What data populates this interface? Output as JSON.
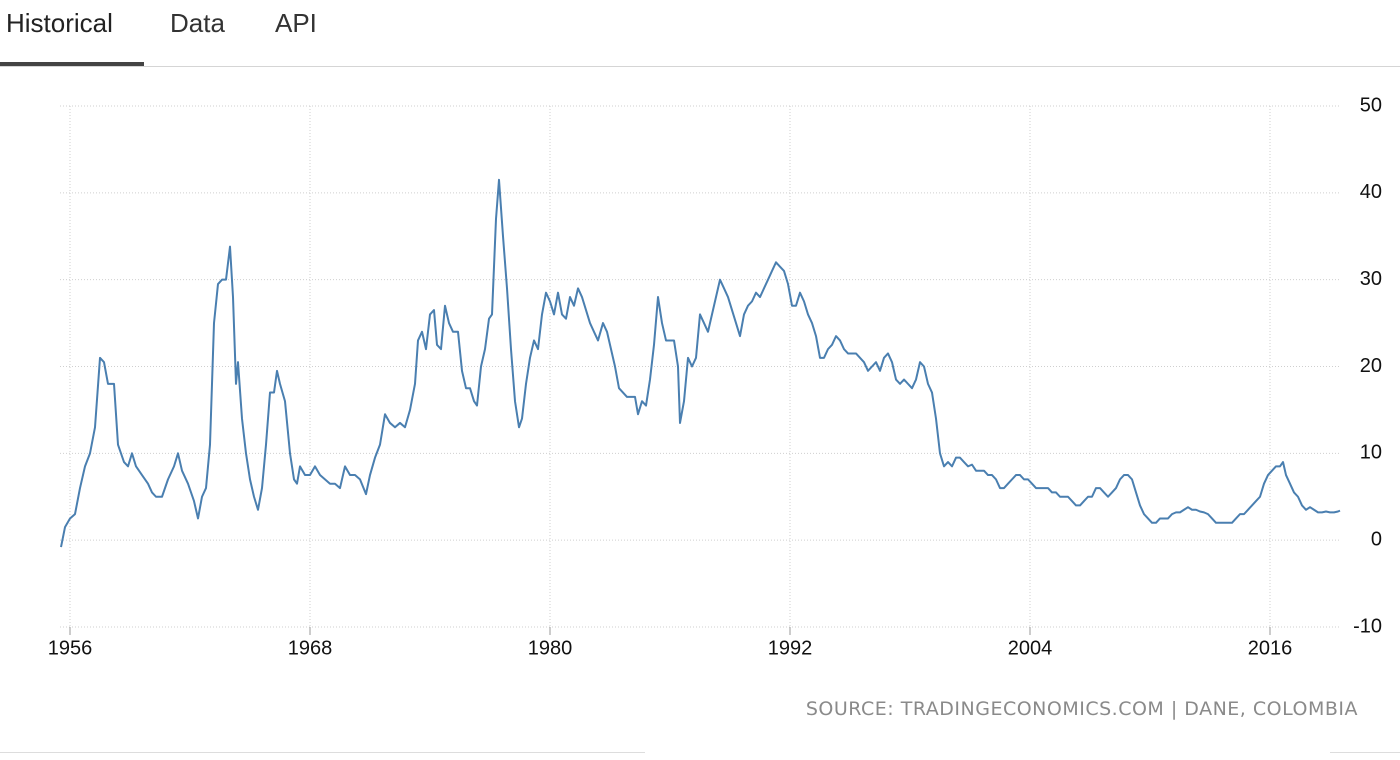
{
  "tabs": [
    "Historical",
    "Data",
    "API"
  ],
  "source": "SOURCE: TRADINGECONOMICS.COM | DANE, COLOMBIA",
  "chart_data": {
    "type": "line",
    "color": "#4a7fb0",
    "grid": true,
    "xlim": [
      1955.5,
      2019.5
    ],
    "xticks": [
      1956,
      1968,
      1980,
      1992,
      2004,
      2016
    ],
    "ylim": [
      -10,
      50
    ],
    "yticks": [
      -10,
      0,
      10,
      20,
      30,
      40,
      50
    ],
    "x": [
      1955.55,
      1955.75,
      1956,
      1956.25,
      1956.5,
      1956.75,
      1957,
      1957.25,
      1957.5,
      1957.7,
      1957.9,
      1958.2,
      1958.4,
      1958.7,
      1958.9,
      1959.1,
      1959.3,
      1959.6,
      1959.9,
      1960.1,
      1960.3,
      1960.6,
      1960.9,
      1961.2,
      1961.4,
      1961.6,
      1961.9,
      1962.2,
      1962.4,
      1962.6,
      1962.8,
      1963,
      1963.2,
      1963.4,
      1963.6,
      1963.8,
      1964,
      1964.15,
      1964.3,
      1964.4,
      1964.6,
      1964.8,
      1965,
      1965.2,
      1965.4,
      1965.6,
      1965.8,
      1966,
      1966.2,
      1966.35,
      1966.5,
      1966.75,
      1967,
      1967.2,
      1967.35,
      1967.5,
      1967.75,
      1968,
      1968.25,
      1968.5,
      1968.75,
      1969,
      1969.25,
      1969.5,
      1969.75,
      1970,
      1970.25,
      1970.5,
      1970.8,
      1971,
      1971.25,
      1971.5,
      1971.75,
      1972,
      1972.25,
      1972.5,
      1972.75,
      1973,
      1973.25,
      1973.4,
      1973.6,
      1973.8,
      1974,
      1974.2,
      1974.35,
      1974.55,
      1974.75,
      1974.95,
      1975.15,
      1975.4,
      1975.6,
      1975.8,
      1976,
      1976.2,
      1976.35,
      1976.55,
      1976.75,
      1976.95,
      1977.1,
      1977.3,
      1977.45,
      1977.65,
      1977.85,
      1978.05,
      1978.25,
      1978.45,
      1978.6,
      1978.8,
      1979,
      1979.2,
      1979.4,
      1979.6,
      1979.8,
      1980,
      1980.2,
      1980.4,
      1980.6,
      1980.8,
      1981,
      1981.2,
      1981.4,
      1981.6,
      1981.8,
      1982,
      1982.2,
      1982.4,
      1982.65,
      1982.85,
      1983.05,
      1983.25,
      1983.45,
      1983.65,
      1983.85,
      1984.05,
      1984.25,
      1984.4,
      1984.6,
      1984.8,
      1985,
      1985.2,
      1985.4,
      1985.6,
      1985.8,
      1986,
      1986.2,
      1986.4,
      1986.5,
      1986.7,
      1986.9,
      1987.1,
      1987.3,
      1987.5,
      1987.7,
      1987.9,
      1988.1,
      1988.3,
      1988.5,
      1988.7,
      1988.9,
      1989.1,
      1989.3,
      1989.5,
      1989.7,
      1989.9,
      1990.1,
      1990.3,
      1990.5,
      1990.7,
      1990.9,
      1991.1,
      1991.3,
      1991.5,
      1991.7,
      1991.9,
      1992.1,
      1992.3,
      1992.5,
      1992.7,
      1992.9,
      1993.1,
      1993.3,
      1993.5,
      1993.7,
      1993.9,
      1994.1,
      1994.3,
      1994.5,
      1994.7,
      1994.9,
      1995.1,
      1995.3,
      1995.5,
      1995.7,
      1995.9,
      1996.1,
      1996.3,
      1996.5,
      1996.7,
      1996.9,
      1997.1,
      1997.3,
      1997.5,
      1997.7,
      1997.9,
      1998.1,
      1998.3,
      1998.5,
      1998.7,
      1998.9,
      1999.1,
      1999.3,
      1999.5,
      1999.7,
      1999.9,
      2000.1,
      2000.3,
      2000.5,
      2000.7,
      2000.9,
      2001.1,
      2001.3,
      2001.5,
      2001.7,
      2001.9,
      2002.1,
      2002.3,
      2002.5,
      2002.7,
      2002.9,
      2003.1,
      2003.3,
      2003.5,
      2003.7,
      2003.9,
      2004.1,
      2004.3,
      2004.5,
      2004.7,
      2004.9,
      2005.1,
      2005.3,
      2005.5,
      2005.7,
      2005.9,
      2006.1,
      2006.3,
      2006.5,
      2006.7,
      2006.9,
      2007.1,
      2007.3,
      2007.5,
      2007.7,
      2007.9,
      2008.1,
      2008.3,
      2008.5,
      2008.7,
      2008.9,
      2009.1,
      2009.3,
      2009.5,
      2009.7,
      2009.9,
      2010.1,
      2010.3,
      2010.5,
      2010.7,
      2010.9,
      2011.1,
      2011.3,
      2011.5,
      2011.7,
      2011.9,
      2012.1,
      2012.3,
      2012.5,
      2012.7,
      2012.9,
      2013.1,
      2013.3,
      2013.5,
      2013.7,
      2013.9,
      2014.1,
      2014.3,
      2014.5,
      2014.7,
      2014.9,
      2015.1,
      2015.3,
      2015.5,
      2015.7,
      2015.9,
      2016.1,
      2016.3,
      2016.5,
      2016.65,
      2016.8,
      2017,
      2017.2,
      2017.4,
      2017.6,
      2017.8,
      2018,
      2018.2,
      2018.4,
      2018.6,
      2018.8,
      2019,
      2019.2,
      2019.4,
      2019.5
    ],
    "values": [
      -0.8,
      1.5,
      2.5,
      3,
      6,
      8.5,
      10,
      13,
      21,
      20.5,
      18,
      18,
      11,
      9,
      8.5,
      10,
      8.5,
      7.5,
      6.5,
      5.5,
      5,
      5,
      7,
      8.5,
      10,
      8,
      6.5,
      4.5,
      2.5,
      5,
      6,
      11,
      25,
      29.5,
      30,
      30,
      33.8,
      28,
      18,
      20.5,
      14,
      10,
      7,
      5,
      3.5,
      6,
      11,
      17,
      17,
      19.5,
      18,
      16,
      10,
      7,
      6.5,
      8.5,
      7.5,
      7.5,
      8.5,
      7.5,
      7,
      6.5,
      6.5,
      6,
      8.5,
      7.5,
      7.5,
      7,
      5.3,
      7.5,
      9.5,
      11,
      14.5,
      13.5,
      13,
      13.5,
      13,
      15,
      18,
      23,
      24,
      22,
      26,
      26.5,
      22.5,
      22,
      27,
      25,
      24,
      24,
      19.5,
      17.5,
      17.5,
      16,
      15.5,
      20,
      22,
      25.5,
      26,
      37,
      41.5,
      35,
      29,
      22,
      16,
      13,
      14,
      18,
      21,
      23,
      22,
      26,
      28.5,
      27.5,
      26,
      28.5,
      26,
      25.5,
      28,
      27,
      29,
      28,
      26.5,
      25,
      24,
      23,
      25,
      24,
      22,
      20,
      17.5,
      17,
      16.5,
      16.5,
      16.5,
      14.5,
      16,
      15.5,
      18.5,
      22.5,
      28,
      25,
      23,
      23,
      23,
      20,
      13.5,
      16,
      21,
      20,
      21,
      26,
      25,
      24,
      26,
      28,
      30,
      29,
      28,
      26.5,
      25,
      23.5,
      26,
      27,
      27.5,
      28.5,
      28,
      29,
      30,
      31,
      32,
      31.5,
      31,
      29.5,
      27,
      27,
      28.5,
      27.5,
      26,
      25,
      23.5,
      21,
      21,
      22,
      22.5,
      23.5,
      23,
      22,
      21.5,
      21.5,
      21.5,
      21,
      20.5,
      19.5,
      20,
      20.5,
      19.5,
      21,
      21.5,
      20.5,
      18.5,
      18,
      18.5,
      18,
      17.5,
      18.5,
      20.5,
      20,
      18,
      17,
      14,
      10,
      8.5,
      9,
      8.5,
      9.5,
      9.5,
      9,
      8.5,
      8.7,
      8,
      8,
      8,
      7.5,
      7.5,
      7,
      6,
      6,
      6.5,
      7,
      7.5,
      7.5,
      7,
      7,
      6.5,
      6,
      6,
      6,
      6,
      5.5,
      5.5,
      5,
      5,
      5,
      4.5,
      4,
      4,
      4.5,
      5,
      5,
      6,
      6,
      5.5,
      5,
      5.5,
      6,
      7,
      7.5,
      7.5,
      7,
      5.5,
      4,
      3,
      2.5,
      2,
      2,
      2.5,
      2.5,
      2.5,
      3,
      3.2,
      3.2,
      3.5,
      3.8,
      3.5,
      3.5,
      3.3,
      3.2,
      3,
      2.5,
      2,
      2,
      2,
      2,
      2,
      2.5,
      3,
      3,
      3.5,
      4,
      4.5,
      5,
      6.5,
      7.5,
      8,
      8.5,
      8.5,
      9,
      7.5,
      6.5,
      5.5,
      5,
      4,
      3.5,
      3.8,
      3.5,
      3.2,
      3.2,
      3.3,
      3.2,
      3.2,
      3.3,
      3.4
    ]
  }
}
